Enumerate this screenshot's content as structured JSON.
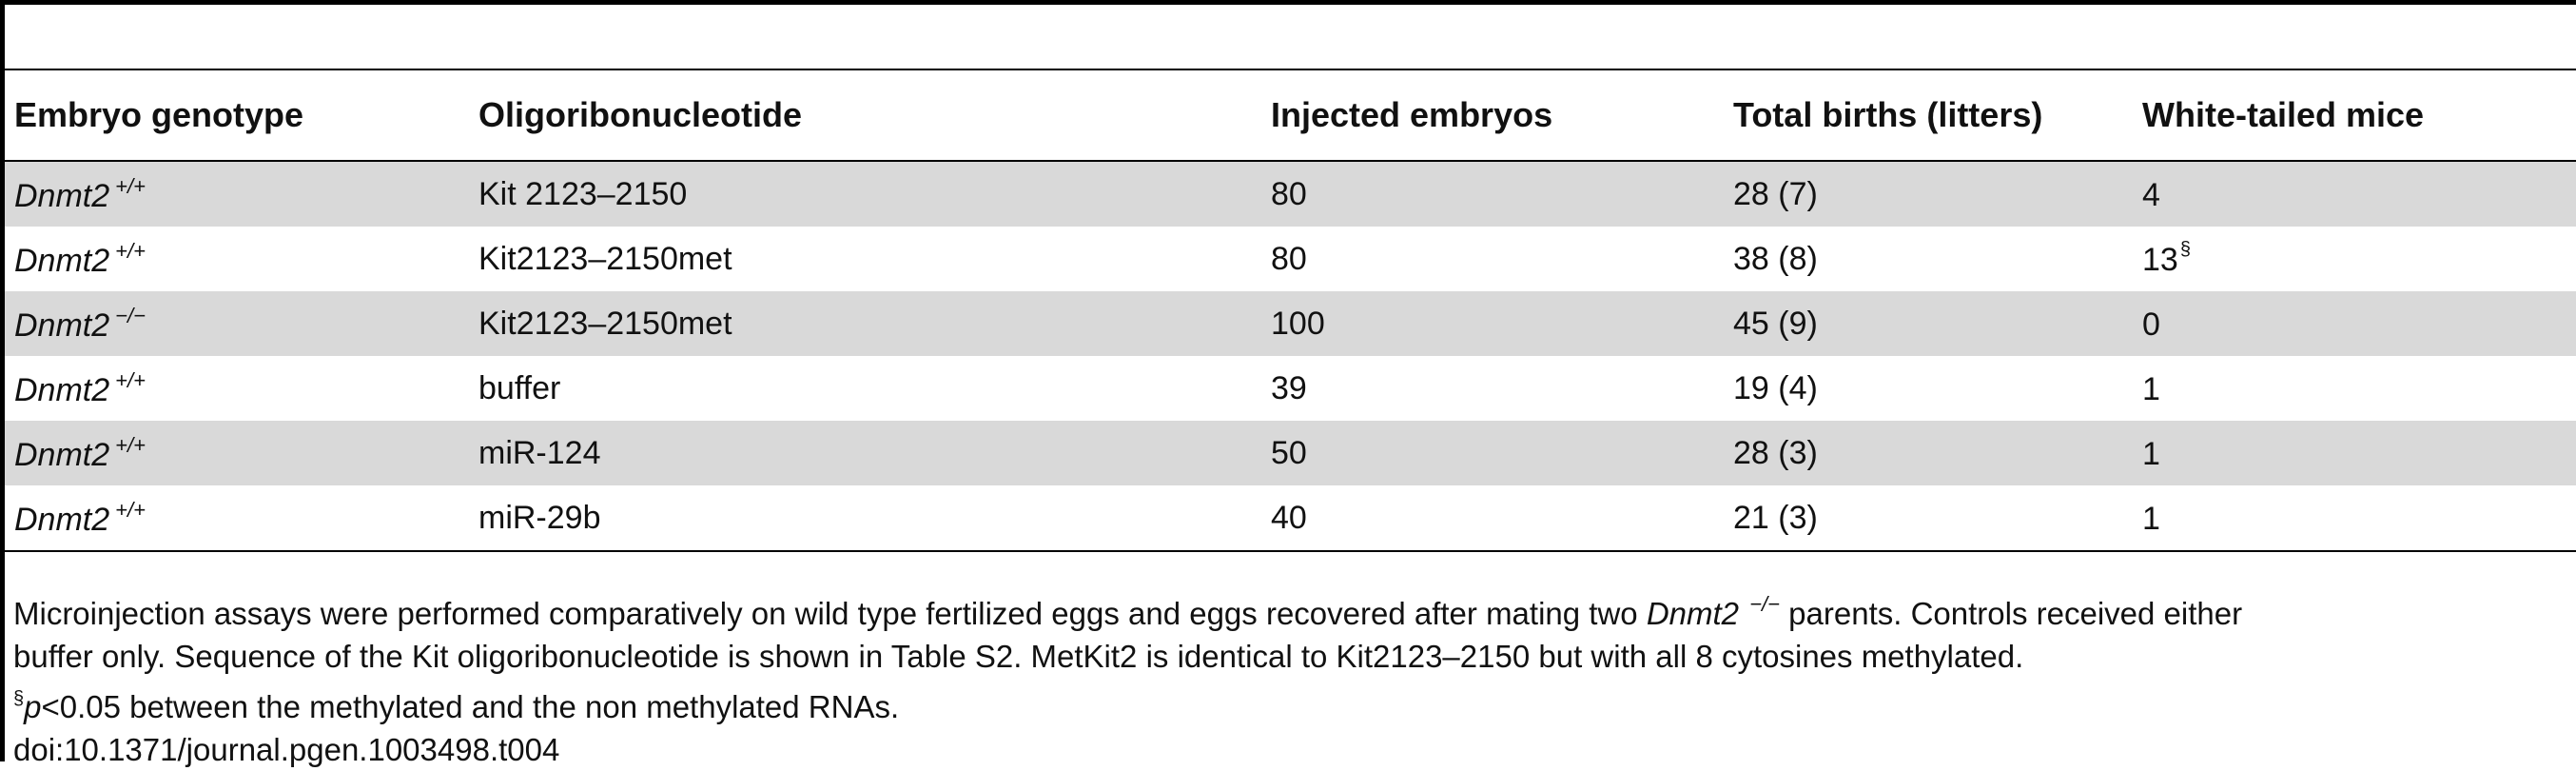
{
  "table": {
    "headers": [
      "Embryo genotype",
      "Oligoribonucleotide",
      "Injected embryos",
      "Total births (litters)",
      "White-tailed mice"
    ],
    "rows": [
      {
        "genotype": "Dnmt2",
        "sup": "+/+",
        "oligo": "Kit 2123–2150",
        "injected": "80",
        "births": "28 (7)",
        "white": "4",
        "white_mark": "",
        "shaded": true
      },
      {
        "genotype": "Dnmt2",
        "sup": "+/+",
        "oligo": "Kit2123–2150met",
        "injected": "80",
        "births": "38 (8)",
        "white": "13",
        "white_mark": "§",
        "shaded": false
      },
      {
        "genotype": "Dnmt2",
        "sup": "−/−",
        "oligo": "Kit2123–2150met",
        "injected": "100",
        "births": "45 (9)",
        "white": "0",
        "white_mark": "",
        "shaded": true
      },
      {
        "genotype": "Dnmt2",
        "sup": "+/+",
        "oligo": "buffer",
        "injected": "39",
        "births": "19 (4)",
        "white": "1",
        "white_mark": "",
        "shaded": false
      },
      {
        "genotype": "Dnmt2",
        "sup": "+/+",
        "oligo": "miR-124",
        "injected": "50",
        "births": "28 (3)",
        "white": "1",
        "white_mark": "",
        "shaded": true
      },
      {
        "genotype": "Dnmt2",
        "sup": "+/+",
        "oligo": "miR-29b",
        "injected": "40",
        "births": "21 (3)",
        "white": "1",
        "white_mark": "",
        "shaded": false
      }
    ]
  },
  "footnotes": {
    "line1_a": "Microinjection assays were performed comparatively on wild type fertilized eggs and eggs recovered after mating two ",
    "line1_gene": "Dnmt2",
    "line1_sup": "−/−",
    "line1_b": " parents. Controls received either",
    "line2": "buffer only. Sequence of the Kit oligoribonucleotide is shown in Table S2. MetKit2 is identical to Kit2123–2150 but with all 8 cytosines methylated.",
    "line3_mark": "§",
    "line3_p": "p",
    "line3_rest": "<0.05 between the methylated and the non methylated RNAs.",
    "doi": "doi:10.1371/journal.pgen.1003498.t004"
  }
}
